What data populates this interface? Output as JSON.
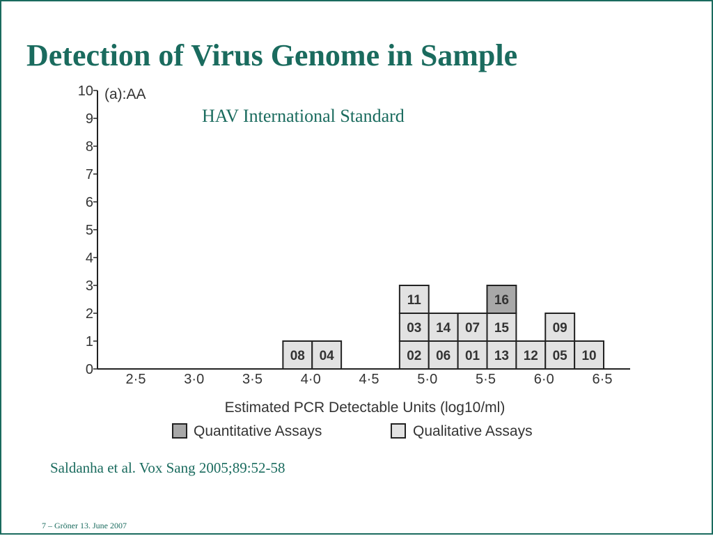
{
  "slide": {
    "title": "Detection of Virus Genome in Sample",
    "subtitle": "HAV International Standard",
    "citation": "Saldanha et al. Vox Sang 2005;89:52-58",
    "footer": "7 – Gröner 13. June 2007"
  },
  "chart_data": {
    "type": "bar",
    "panel_label": "(a):AA",
    "xlabel": "Estimated PCR Detectable Units (log10/ml)",
    "ylabel": "",
    "x_ticks": [
      "2·5",
      "3·0",
      "3·5",
      "4·0",
      "4·5",
      "5·0",
      "5·5",
      "6·0",
      "6·5"
    ],
    "x_tick_values": [
      2.5,
      3.0,
      3.5,
      4.0,
      4.5,
      5.0,
      5.5,
      6.0,
      6.5
    ],
    "y_ticks": [
      "0",
      "1",
      "2",
      "3",
      "4",
      "5",
      "6",
      "7",
      "8",
      "9",
      "10"
    ],
    "ylim": [
      0,
      10
    ],
    "bin_width": 0.25,
    "legend": [
      {
        "label": "Quantitative Assays",
        "color": "#a8a8a8"
      },
      {
        "label": "Qualitative Assays",
        "color": "#e2e2e2"
      }
    ],
    "legend_position": "bottom",
    "bins": [
      {
        "start": 3.75,
        "labs": [
          {
            "id": "08",
            "assay": "Qualitative"
          }
        ]
      },
      {
        "start": 4.0,
        "labs": [
          {
            "id": "04",
            "assay": "Qualitative"
          }
        ]
      },
      {
        "start": 4.75,
        "labs": [
          {
            "id": "02",
            "assay": "Qualitative"
          },
          {
            "id": "03",
            "assay": "Qualitative"
          },
          {
            "id": "11",
            "assay": "Qualitative"
          }
        ]
      },
      {
        "start": 5.0,
        "labs": [
          {
            "id": "06",
            "assay": "Qualitative"
          },
          {
            "id": "14",
            "assay": "Qualitative"
          }
        ]
      },
      {
        "start": 5.25,
        "labs": [
          {
            "id": "01",
            "assay": "Qualitative"
          },
          {
            "id": "07",
            "assay": "Qualitative"
          }
        ]
      },
      {
        "start": 5.5,
        "labs": [
          {
            "id": "13",
            "assay": "Qualitative"
          },
          {
            "id": "15",
            "assay": "Qualitative"
          },
          {
            "id": "16",
            "assay": "Quantitative"
          }
        ]
      },
      {
        "start": 5.75,
        "labs": [
          {
            "id": "12",
            "assay": "Qualitative"
          }
        ]
      },
      {
        "start": 6.0,
        "labs": [
          {
            "id": "05",
            "assay": "Qualitative"
          },
          {
            "id": "09",
            "assay": "Qualitative"
          }
        ]
      },
      {
        "start": 6.25,
        "labs": [
          {
            "id": "10",
            "assay": "Qualitative"
          }
        ]
      }
    ],
    "colors": {
      "quantitative": "#a8a8a8",
      "qualitative": "#e2e2e2",
      "outline": "#222222",
      "text": "#333333",
      "accent": "#1a6b5e"
    }
  }
}
